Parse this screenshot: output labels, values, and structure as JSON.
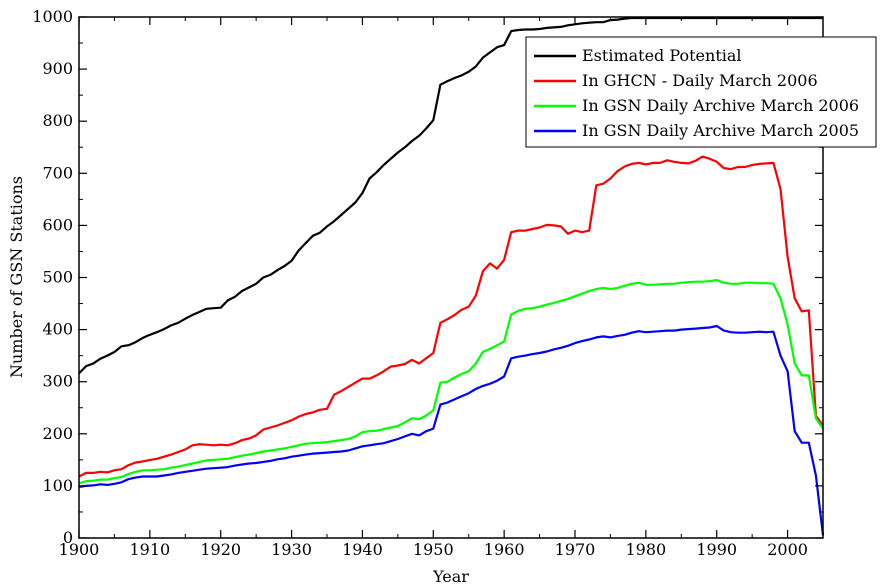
{
  "chart_data": {
    "type": "line",
    "title": "",
    "xlabel": "Year",
    "ylabel": "Number of GSN Stations",
    "xlim": [
      1900,
      2005
    ],
    "ylim": [
      0,
      1000
    ],
    "xticks": [
      1900,
      1910,
      1920,
      1930,
      1940,
      1950,
      1960,
      1970,
      1980,
      1990,
      2000
    ],
    "yticks": [
      0,
      100,
      200,
      300,
      400,
      500,
      600,
      700,
      800,
      900,
      1000
    ],
    "grid": false,
    "legend_position": "top-right",
    "x": [
      1900,
      1901,
      1902,
      1903,
      1904,
      1905,
      1906,
      1907,
      1908,
      1909,
      1910,
      1911,
      1912,
      1913,
      1914,
      1915,
      1916,
      1917,
      1918,
      1919,
      1920,
      1921,
      1922,
      1923,
      1924,
      1925,
      1926,
      1927,
      1928,
      1929,
      1930,
      1931,
      1932,
      1933,
      1934,
      1935,
      1936,
      1937,
      1938,
      1939,
      1940,
      1941,
      1942,
      1943,
      1944,
      1945,
      1946,
      1947,
      1948,
      1949,
      1950,
      1951,
      1952,
      1953,
      1954,
      1955,
      1956,
      1957,
      1958,
      1959,
      1960,
      1961,
      1962,
      1963,
      1964,
      1965,
      1966,
      1967,
      1968,
      1969,
      1970,
      1971,
      1972,
      1973,
      1974,
      1975,
      1976,
      1977,
      1978,
      1979,
      1980,
      1981,
      1982,
      1983,
      1984,
      1985,
      1986,
      1987,
      1988,
      1989,
      1990,
      1991,
      1992,
      1993,
      1994,
      1995,
      1996,
      1997,
      1998,
      1999,
      2000,
      2001,
      2002,
      2003,
      2004,
      2005
    ],
    "series": [
      {
        "name": "Estimated Potential",
        "color": "#000000",
        "values": [
          316,
          330,
          335,
          344,
          350,
          357,
          368,
          370,
          376,
          384,
          390,
          395,
          401,
          408,
          413,
          421,
          428,
          434,
          440,
          441,
          442,
          456,
          463,
          474,
          481,
          488,
          500,
          505,
          514,
          522,
          532,
          552,
          566,
          580,
          586,
          598,
          608,
          620,
          632,
          644,
          662,
          690,
          702,
          716,
          728,
          740,
          750,
          762,
          772,
          786,
          802,
          870,
          877,
          883,
          888,
          895,
          905,
          922,
          932,
          942,
          946,
          973,
          975,
          976,
          976,
          977,
          979,
          980,
          981,
          984,
          986,
          988,
          989,
          990,
          990,
          994,
          995,
          997,
          998,
          998,
          998,
          998,
          998,
          998,
          998,
          998,
          998,
          998,
          998,
          998,
          998,
          998,
          998,
          998,
          998,
          998,
          998,
          998,
          998,
          998,
          998,
          998,
          998,
          998,
          998,
          998
        ]
      },
      {
        "name": "In GHCN - Daily March 2006",
        "color": "#ff0000",
        "values": [
          118,
          125,
          125,
          127,
          126,
          130,
          132,
          140,
          145,
          147,
          150,
          152,
          156,
          160,
          165,
          170,
          178,
          180,
          179,
          178,
          179,
          178,
          182,
          188,
          191,
          197,
          208,
          212,
          216,
          221,
          226,
          233,
          238,
          241,
          246,
          248,
          275,
          282,
          290,
          298,
          306,
          306,
          312,
          320,
          329,
          331,
          334,
          342,
          335,
          345,
          355,
          413,
          420,
          428,
          438,
          444,
          465,
          512,
          527,
          517,
          534,
          587,
          590,
          590,
          593,
          596,
          601,
          600,
          598,
          584,
          590,
          587,
          590,
          677,
          680,
          690,
          704,
          713,
          718,
          720,
          717,
          720,
          720,
          725,
          722,
          720,
          719,
          724,
          732,
          728,
          722,
          710,
          708,
          712,
          712,
          716,
          718,
          719,
          720,
          670,
          540,
          460,
          435,
          437,
          235,
          215
        ]
      },
      {
        "name": "In GSN Daily Archive March 2006",
        "color": "#00ff00",
        "values": [
          105,
          109,
          110,
          112,
          112,
          115,
          117,
          123,
          127,
          130,
          130,
          131,
          132,
          135,
          137,
          140,
          143,
          146,
          149,
          150,
          151,
          152,
          155,
          158,
          160,
          163,
          166,
          168,
          170,
          172,
          175,
          178,
          181,
          182,
          183,
          184,
          186,
          188,
          190,
          195,
          203,
          205,
          206,
          209,
          212,
          215,
          222,
          230,
          228,
          235,
          245,
          298,
          300,
          308,
          315,
          320,
          335,
          357,
          363,
          370,
          377,
          429,
          436,
          440,
          441,
          444,
          448,
          451,
          455,
          459,
          464,
          469,
          474,
          478,
          480,
          478,
          480,
          484,
          488,
          490,
          486,
          486,
          487,
          488,
          488,
          490,
          491,
          492,
          492,
          493,
          495,
          490,
          488,
          488,
          490,
          490,
          489,
          489,
          488,
          460,
          410,
          335,
          312,
          312,
          230,
          210
        ]
      },
      {
        "name": "In GSN Daily Archive March 2005",
        "color": "#0000ff",
        "values": [
          98,
          100,
          101,
          103,
          102,
          104,
          107,
          113,
          116,
          118,
          118,
          118,
          120,
          122,
          125,
          127,
          129,
          131,
          133,
          134,
          135,
          136,
          139,
          141,
          143,
          144,
          146,
          148,
          151,
          153,
          156,
          158,
          160,
          162,
          163,
          164,
          165,
          166,
          168,
          172,
          176,
          178,
          180,
          182,
          186,
          190,
          195,
          200,
          197,
          205,
          210,
          256,
          260,
          266,
          272,
          278,
          286,
          292,
          296,
          302,
          310,
          345,
          348,
          350,
          353,
          355,
          358,
          362,
          365,
          369,
          374,
          378,
          381,
          385,
          387,
          385,
          388,
          390,
          394,
          397,
          395,
          396,
          397,
          398,
          398,
          400,
          401,
          402,
          403,
          404,
          407,
          398,
          395,
          394,
          394,
          395,
          396,
          395,
          396,
          350,
          320,
          205,
          183,
          183,
          120,
          5
        ]
      }
    ]
  }
}
